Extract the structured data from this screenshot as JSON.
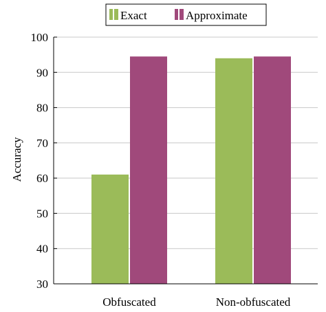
{
  "chart_data": {
    "type": "bar",
    "title": "",
    "xlabel": "",
    "ylabel": "Accuracy",
    "categories": [
      "Obfuscated",
      "Non-obfuscated"
    ],
    "series": [
      {
        "name": "Exact",
        "values": [
          61,
          94
        ],
        "color": "#9bbb59"
      },
      {
        "name": "Approximate",
        "values": [
          94.5,
          94.5
        ],
        "color": "#a0497b"
      }
    ],
    "ylim": [
      30,
      100
    ],
    "yticks": [
      30,
      40,
      50,
      60,
      70,
      80,
      90,
      100
    ],
    "grid": true,
    "legend_position": "top-center"
  }
}
